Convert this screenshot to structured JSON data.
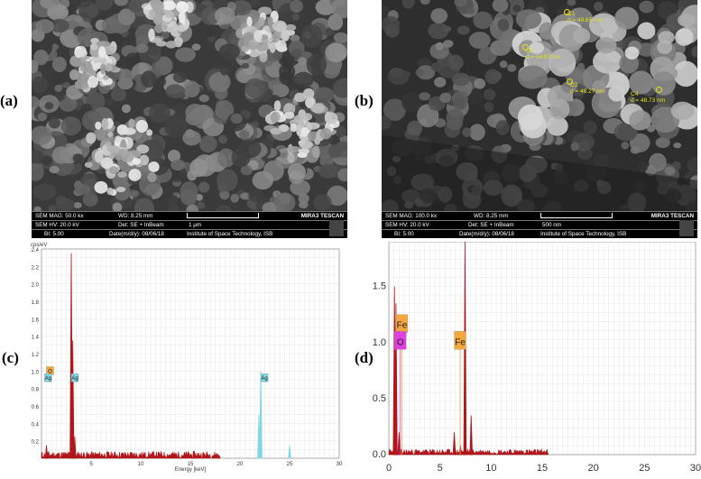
{
  "panels": {
    "a": {
      "label": "(a)"
    },
    "b": {
      "label": "(b)"
    },
    "c": {
      "label": "(c)"
    },
    "d": {
      "label": "(d)"
    }
  },
  "sem_a": {
    "mag": "SEM MAG: 50.0 kx",
    "wd": "WD: 8.25 mm",
    "brand": "MIRA3 TESCAN",
    "hv": "SEM HV: 20.0 kV",
    "det": "Det: SE + InBeam",
    "scale": "1 μm",
    "bi": "BI: 5.00",
    "date": "Date(m/d/y): 08/06/18",
    "inst": "Institute of Space Technology, ISB"
  },
  "sem_b": {
    "mag": "SEM MAG: 100.0 kx",
    "wd": "WD: 8.25 mm",
    "brand": "MIRA3 TESCAN",
    "hv": "SEM HV: 20.0 kV",
    "det": "Det: SE + InBeam",
    "scale": "500 nm",
    "bi": "BI: 5.00",
    "date": "Date(m/d/y): 08/06/18",
    "inst": "Institute of Space Technology, ISB",
    "measurements": [
      {
        "id": "C1",
        "d": "d = 49.65 nm"
      },
      {
        "id": "C2",
        "d": "d = 54.67 nm"
      },
      {
        "id": "C3",
        "d": "d = 46.27 nm"
      },
      {
        "id": "C4",
        "d": "d = 48.73 nm"
      }
    ]
  },
  "chart_data": [
    {
      "type": "line",
      "ylabel": "cps/eV",
      "xlabel": "Energy [keV]",
      "xlim": [
        0,
        30
      ],
      "ylim": [
        0,
        2.4
      ],
      "xticks": [
        5,
        10,
        15,
        20,
        25,
        30
      ],
      "yticks": [
        0.2,
        0.4,
        0.6,
        0.8,
        1.0,
        1.2,
        1.4,
        1.6,
        1.8,
        2.0,
        2.2,
        2.4
      ],
      "grid": true,
      "colors": {
        "spectrum": "#b0161b",
        "ag_fill": "#7fd6e6",
        "o_tag": "#f2a63c",
        "ag_tag": "#7fd6e6"
      },
      "peaks": [
        {
          "x": 0.5,
          "y": 0.15
        },
        {
          "x": 3.0,
          "y": 2.35
        },
        {
          "x": 3.15,
          "y": 1.35
        },
        {
          "x": 3.35,
          "y": 0.25
        },
        {
          "x": 22.1,
          "y": 1.0
        },
        {
          "x": 21.9,
          "y": 0.5
        },
        {
          "x": 25.0,
          "y": 0.15
        }
      ],
      "tags": [
        {
          "text": "O",
          "x": 0.5,
          "y": 1.05,
          "color": "#f2a63c"
        },
        {
          "text": "Ag",
          "x": 0.3,
          "y": 0.97,
          "color": "#7fd6e6"
        },
        {
          "text": "Ag",
          "x": 3.0,
          "y": 0.97,
          "color": "#7fd6e6"
        },
        {
          "text": "Ag",
          "x": 22.1,
          "y": 0.97,
          "color": "#7fd6e6"
        }
      ]
    },
    {
      "type": "line",
      "xlim": [
        0,
        30
      ],
      "ylim": [
        0,
        1.9
      ],
      "xticks": [
        0,
        5,
        10,
        15,
        20,
        25,
        30
      ],
      "yticks": [
        0.0,
        0.5,
        1.0,
        1.5
      ],
      "yticklabels": [
        "0.0",
        "0.5",
        "1.0",
        "1.5"
      ],
      "grid": true,
      "colors": {
        "spectrum": "#b0161b",
        "fe_tag": "#f2a63c",
        "o_tag": "#e040e0"
      },
      "peaks": [
        {
          "x": 0.55,
          "y": 1.5
        },
        {
          "x": 0.7,
          "y": 1.35
        },
        {
          "x": 1.0,
          "y": 0.2
        },
        {
          "x": 6.4,
          "y": 0.2
        },
        {
          "x": 7.0,
          "y": 0.08
        },
        {
          "x": 7.45,
          "y": 1.9
        },
        {
          "x": 8.05,
          "y": 0.35
        }
      ],
      "tags": [
        {
          "text": "Fe",
          "x": 0.7,
          "y": 1.25,
          "color": "#f2a63c"
        },
        {
          "text": "O",
          "x": 0.55,
          "y": 1.1,
          "color": "#e040e0"
        },
        {
          "text": "Fe",
          "x": 6.4,
          "y": 1.1,
          "color": "#f2a63c"
        }
      ]
    }
  ]
}
